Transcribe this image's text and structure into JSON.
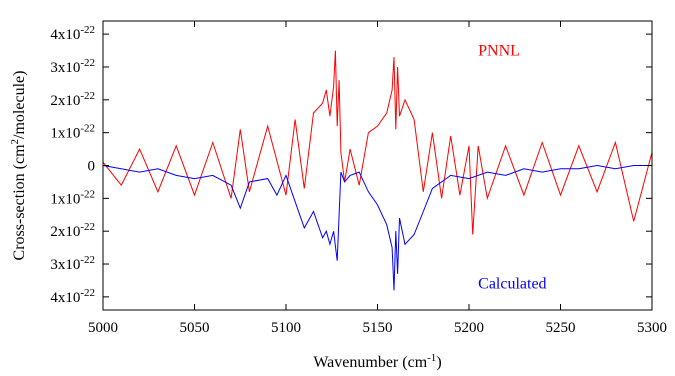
{
  "chart_data": {
    "type": "line",
    "xlabel": "Wavenumber (cm",
    "xlabel_sup": "-1",
    "xlabel_close": ")",
    "ylabel": "Cross-section (cm",
    "ylabel_sup": "2",
    "ylabel_tail": "/molecule)",
    "xlim": [
      5000,
      5300
    ],
    "ylim": [
      -4.4e-22,
      4.4e-22
    ],
    "grid": false,
    "x_ticks": [
      5000,
      5050,
      5100,
      5150,
      5200,
      5250,
      5300
    ],
    "x_tick_labels": [
      "5000",
      "5050",
      "5100",
      "5150",
      "5200",
      "5250",
      "5300"
    ],
    "y_ticks": [
      {
        "value": 4e-22,
        "base": "4x10",
        "exp": "-22"
      },
      {
        "value": 3e-22,
        "base": "3x10",
        "exp": "-22"
      },
      {
        "value": 2e-22,
        "base": "2x10",
        "exp": "-22"
      },
      {
        "value": 1e-22,
        "base": "1x10",
        "exp": "-22"
      },
      {
        "value": 0,
        "base": "0",
        "exp": ""
      },
      {
        "value": -1e-22,
        "base": "1x10",
        "exp": "-22"
      },
      {
        "value": -2e-22,
        "base": "2x10",
        "exp": "-22"
      },
      {
        "value": -3e-22,
        "base": "3x10",
        "exp": "-22"
      },
      {
        "value": -4e-22,
        "base": "4x10",
        "exp": "-22"
      }
    ],
    "series": [
      {
        "name": "PNNL",
        "color": "#ff0000",
        "x": [
          5000,
          5010,
          5020,
          5030,
          5040,
          5050,
          5060,
          5070,
          5075,
          5080,
          5090,
          5100,
          5105,
          5110,
          5115,
          5120,
          5122,
          5124,
          5126,
          5127,
          5128,
          5129,
          5130,
          5132,
          5135,
          5140,
          5145,
          5150,
          5155,
          5158,
          5159,
          5160,
          5161,
          5162,
          5165,
          5170,
          5175,
          5180,
          5185,
          5190,
          5195,
          5200,
          5202,
          5205,
          5210,
          5220,
          5230,
          5240,
          5250,
          5260,
          5270,
          5280,
          5290,
          5300
        ],
        "y": [
          1e-23,
          -6e-23,
          5e-23,
          -8e-23,
          6e-23,
          -9e-23,
          7e-23,
          -1e-22,
          1.1e-22,
          -8e-23,
          1.2e-22,
          -9e-23,
          1.4e-22,
          -7e-23,
          1.6e-22,
          1.9e-22,
          2.3e-22,
          1.5e-22,
          2.4e-22,
          3.5e-22,
          1.2e-22,
          2.6e-22,
          4e-23,
          -5e-23,
          5e-23,
          -6e-23,
          1e-22,
          1.2e-22,
          1.6e-22,
          2.3e-22,
          3.3e-22,
          1.1e-22,
          3e-22,
          1.5e-22,
          2e-22,
          1.4e-22,
          -8e-23,
          1e-22,
          -1e-22,
          9e-23,
          -9e-23,
          6e-23,
          -2.1e-22,
          6e-23,
          -1e-22,
          6e-23,
          -9e-23,
          7e-23,
          -9e-23,
          6e-23,
          -8e-23,
          7e-23,
          -1.7e-22,
          4e-23
        ]
      },
      {
        "name": "Calculated",
        "color": "#0000ff",
        "x": [
          5000,
          5010,
          5020,
          5030,
          5040,
          5050,
          5060,
          5070,
          5075,
          5080,
          5090,
          5095,
          5100,
          5105,
          5110,
          5115,
          5120,
          5122,
          5124,
          5126,
          5128,
          5129,
          5130,
          5132,
          5135,
          5140,
          5145,
          5150,
          5155,
          5158,
          5159,
          5160,
          5161,
          5162,
          5165,
          5170,
          5175,
          5180,
          5190,
          5200,
          5210,
          5220,
          5230,
          5240,
          5250,
          5260,
          5270,
          5280,
          5290,
          5300
        ],
        "y": [
          0,
          -1e-23,
          -2e-23,
          -1e-23,
          -3e-23,
          -4e-23,
          -3e-23,
          -6e-23,
          -1.3e-22,
          -5e-23,
          -4e-23,
          -9e-23,
          -3e-23,
          -1.1e-22,
          -1.9e-22,
          -1.4e-22,
          -2.2e-22,
          -2e-22,
          -2.4e-22,
          -2e-22,
          -2.9e-22,
          -1.5e-22,
          -2e-23,
          -5e-23,
          -3e-23,
          -2e-23,
          -8e-23,
          -1.2e-22,
          -1.8e-22,
          -2.5e-22,
          -3.8e-22,
          -2e-22,
          -3.3e-22,
          -1.6e-22,
          -2.4e-22,
          -2.1e-22,
          -1.4e-22,
          -7e-23,
          -3e-23,
          -4e-23,
          -2e-23,
          -3e-23,
          -1e-23,
          -2e-23,
          -1e-23,
          -1e-23,
          0,
          -1e-23,
          0,
          0
        ]
      }
    ],
    "annotations": [
      {
        "text": "PNNL",
        "color": "#ff0000",
        "x": 5205,
        "y": 3.5e-22
      },
      {
        "text": "Calculated",
        "color": "#0000ff",
        "x": 5205,
        "y": -3.6e-22
      }
    ]
  }
}
